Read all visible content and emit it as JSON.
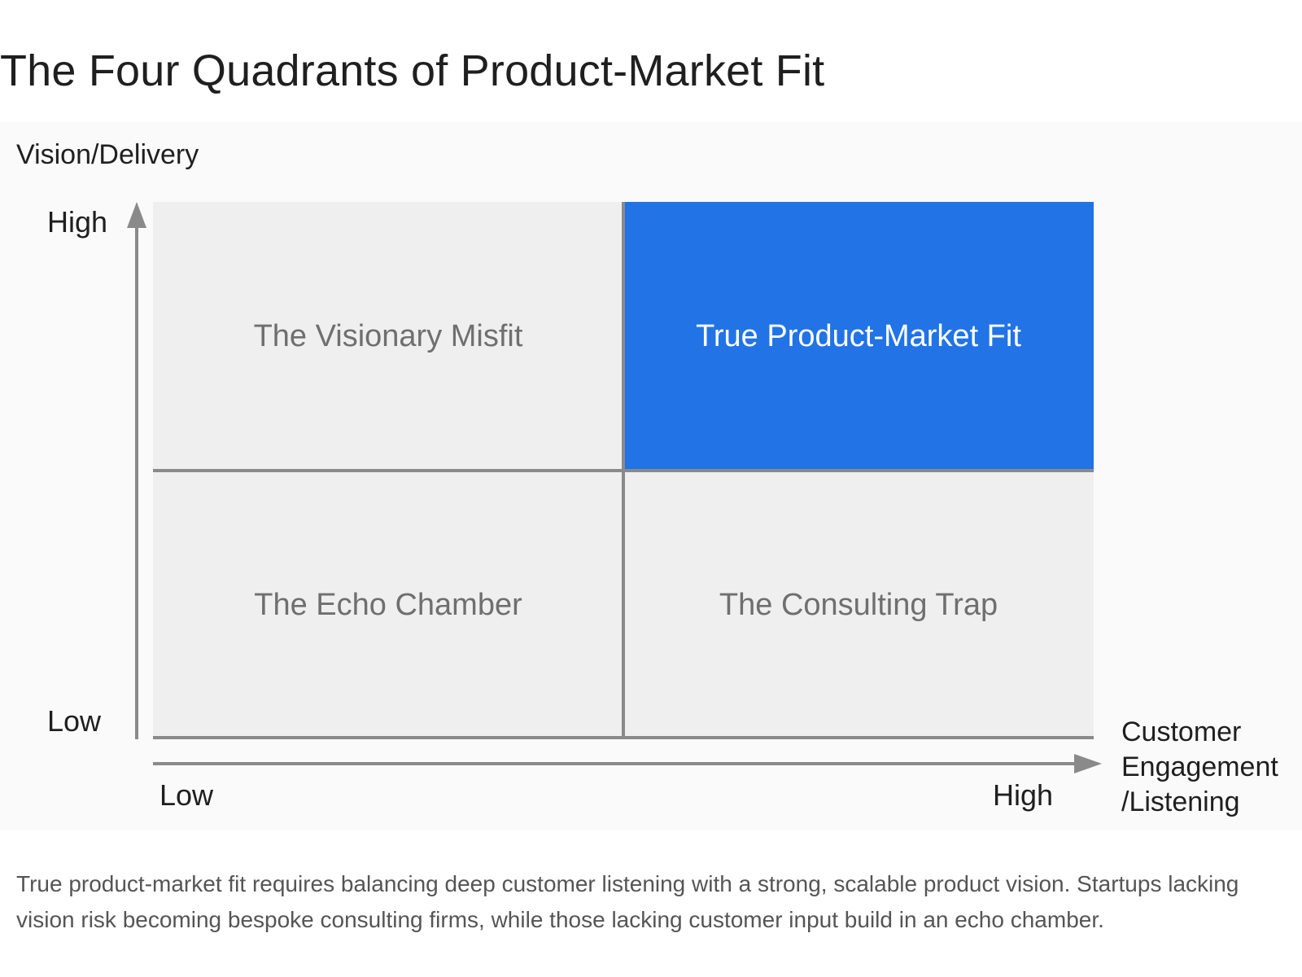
{
  "title": "The Four Quadrants of Product-Market Fit",
  "diagram": {
    "y_axis": {
      "title": "Vision/Delivery",
      "high": "High",
      "low": "Low"
    },
    "x_axis": {
      "title_lines": [
        "Customer",
        "Engagement",
        "/Listening"
      ],
      "low": "Low",
      "high": "High"
    },
    "quadrants": {
      "top_left": "The Visionary Misfit",
      "top_right": "True Product-Market Fit",
      "bottom_left": "The Echo Chamber",
      "bottom_right": "The Consulting Trap"
    },
    "colors": {
      "highlight": "#2173e6",
      "quadrant_fill": "#efefef",
      "axis": "#8a8a8a"
    }
  },
  "caption": "True product-market fit requires balancing deep customer listening with a strong, scalable product vision. Startups lacking vision risk becoming bespoke consulting firms, while those lacking customer input build in an echo chamber."
}
